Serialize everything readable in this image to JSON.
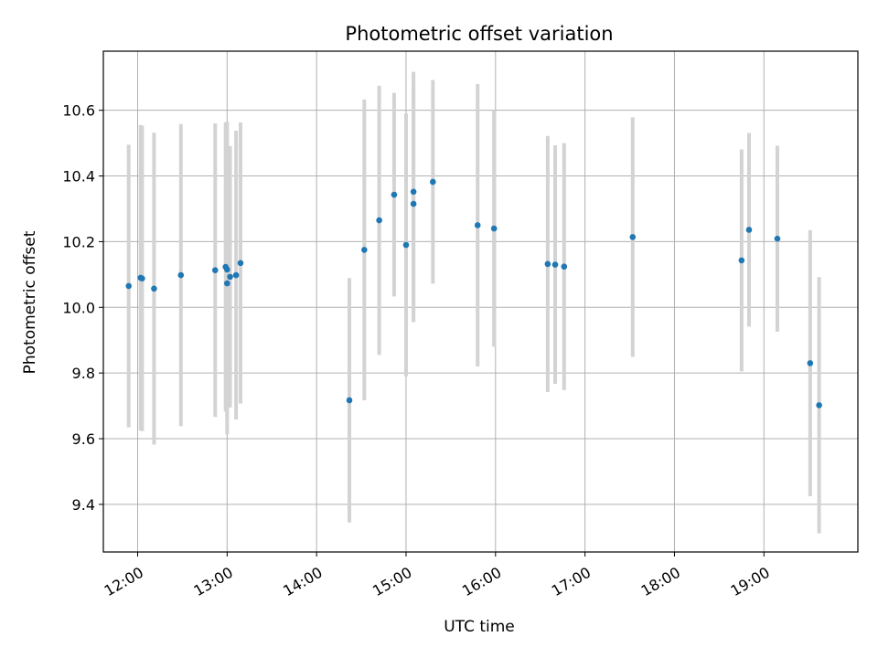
{
  "chart_data": {
    "type": "scatter",
    "title": "Photometric offset variation",
    "xlabel": "UTC time",
    "ylabel": "Photometric offset",
    "x_tick_labels": [
      "12:00",
      "13:00",
      "14:00",
      "15:00",
      "16:00",
      "17:00",
      "18:00",
      "19:00"
    ],
    "x_ticks": [
      "12:00",
      "13:00",
      "14:00",
      "15:00",
      "16:00",
      "17:00",
      "18:00",
      "19:00"
    ],
    "y_tick_labels": [
      "9.4",
      "9.6",
      "9.8",
      "10.0",
      "10.2",
      "10.4",
      "10.6"
    ],
    "y_ticks": [
      9.4,
      9.6,
      9.8,
      10.0,
      10.2,
      10.4,
      10.6
    ],
    "xlim": [
      "11:37",
      "20:03"
    ],
    "ylim": [
      9.255,
      10.78
    ],
    "grid": true,
    "marker_color": "#1f77b4",
    "errorbar_color": "#d3d3d3",
    "points": [
      {
        "x": "11:54",
        "y": 10.065,
        "err": 0.43
      },
      {
        "x": "12:02",
        "y": 10.09,
        "err": 0.465
      },
      {
        "x": "12:03",
        "y": 10.088,
        "err": 0.465
      },
      {
        "x": "12:11",
        "y": 10.057,
        "err": 0.475
      },
      {
        "x": "12:29",
        "y": 10.098,
        "err": 0.46
      },
      {
        "x": "12:52",
        "y": 10.113,
        "err": 0.447
      },
      {
        "x": "12:59",
        "y": 10.123,
        "err": 0.44
      },
      {
        "x": "13:00",
        "y": 10.073,
        "err": 0.46
      },
      {
        "x": "13:00",
        "y": 10.115,
        "err": 0.45
      },
      {
        "x": "13:02",
        "y": 10.093,
        "err": 0.398
      },
      {
        "x": "13:06",
        "y": 10.098,
        "err": 0.44
      },
      {
        "x": "13:09",
        "y": 10.135,
        "err": 0.428
      },
      {
        "x": "14:22",
        "y": 9.717,
        "err": 0.372
      },
      {
        "x": "14:32",
        "y": 10.175,
        "err": 0.458
      },
      {
        "x": "14:42",
        "y": 10.265,
        "err": 0.41
      },
      {
        "x": "14:52",
        "y": 10.343,
        "err": 0.31
      },
      {
        "x": "15:00",
        "y": 10.19,
        "err": 0.4
      },
      {
        "x": "15:05",
        "y": 10.352,
        "err": 0.365
      },
      {
        "x": "15:05",
        "y": 10.315,
        "err": 0.36
      },
      {
        "x": "15:18",
        "y": 10.382,
        "err": 0.31
      },
      {
        "x": "15:48",
        "y": 10.25,
        "err": 0.43
      },
      {
        "x": "15:59",
        "y": 10.24,
        "err": 0.36
      },
      {
        "x": "16:35",
        "y": 10.132,
        "err": 0.39
      },
      {
        "x": "16:40",
        "y": 10.13,
        "err": 0.363
      },
      {
        "x": "16:46",
        "y": 10.124,
        "err": 0.376
      },
      {
        "x": "17:32",
        "y": 10.214,
        "err": 0.365
      },
      {
        "x": "18:45",
        "y": 10.143,
        "err": 0.338
      },
      {
        "x": "18:50",
        "y": 10.236,
        "err": 0.295
      },
      {
        "x": "19:09",
        "y": 10.209,
        "err": 0.283
      },
      {
        "x": "19:31",
        "y": 9.83,
        "err": 0.405
      },
      {
        "x": "19:37",
        "y": 9.702,
        "err": 0.39
      }
    ]
  }
}
